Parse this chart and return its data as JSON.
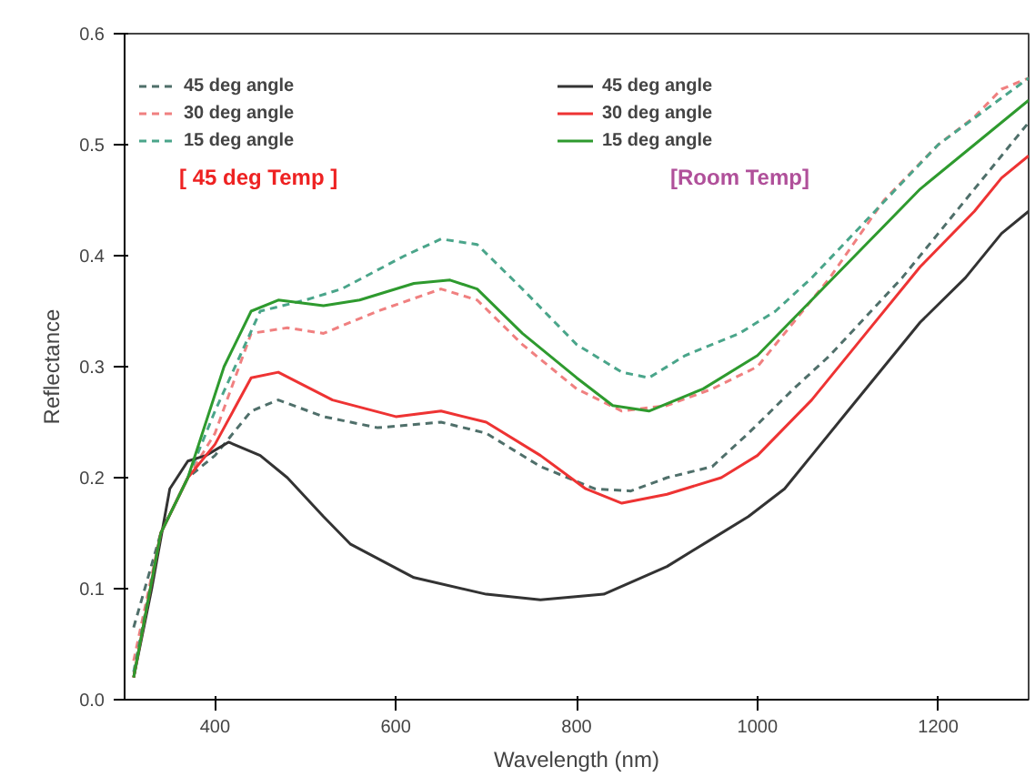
{
  "chart_data": {
    "type": "line",
    "xlabel": "Wavelength (nm)",
    "ylabel": "Reflectance",
    "xlim": [
      300,
      1300
    ],
    "ylim": [
      0,
      0.6
    ],
    "xticks": [
      400,
      600,
      800,
      1000,
      1200
    ],
    "yticks": [
      {
        "value": 0,
        "label": "0.0"
      },
      0.1,
      0.2,
      0.3,
      0.4,
      0.5,
      0.6
    ],
    "legend": "top left",
    "grid": false,
    "annotations": [
      "[ 45 deg Temp ]",
      "[Room Temp]"
    ],
    "series": [
      {
        "name": "45 deg angle",
        "color": "#4f6f6a",
        "line_style": "dashed",
        "x": [
          310,
          340,
          370,
          400,
          440,
          470,
          520,
          580,
          650,
          700,
          760,
          820,
          860,
          900,
          950,
          990,
          1040,
          1080,
          1120,
          1160,
          1200,
          1230,
          1270,
          1300
        ],
        "values": [
          0.065,
          0.15,
          0.2,
          0.22,
          0.26,
          0.27,
          0.255,
          0.245,
          0.25,
          0.24,
          0.21,
          0.19,
          0.188,
          0.2,
          0.21,
          0.24,
          0.28,
          0.31,
          0.345,
          0.38,
          0.42,
          0.45,
          0.49,
          0.52
        ]
      },
      {
        "name": "30 deg angle",
        "color": "#f08080",
        "line_style": "dashed",
        "x": [
          310,
          340,
          370,
          400,
          440,
          480,
          520,
          580,
          650,
          690,
          740,
          800,
          850,
          900,
          950,
          1000,
          1040,
          1080,
          1140,
          1200,
          1240,
          1270,
          1300
        ],
        "values": [
          0.035,
          0.15,
          0.2,
          0.24,
          0.33,
          0.335,
          0.33,
          0.35,
          0.37,
          0.36,
          0.32,
          0.28,
          0.26,
          0.265,
          0.28,
          0.3,
          0.34,
          0.38,
          0.45,
          0.5,
          0.525,
          0.55,
          0.56
        ]
      },
      {
        "name": "15 deg angle",
        "color": "#4aa58a",
        "line_style": "dashed",
        "x": [
          310,
          340,
          370,
          400,
          450,
          500,
          540,
          610,
          650,
          690,
          740,
          800,
          850,
          880,
          920,
          980,
          1020,
          1060,
          1130,
          1200,
          1250,
          1300
        ],
        "values": [
          0.025,
          0.15,
          0.2,
          0.26,
          0.35,
          0.36,
          0.37,
          0.4,
          0.415,
          0.41,
          0.37,
          0.32,
          0.295,
          0.29,
          0.31,
          0.33,
          0.35,
          0.38,
          0.44,
          0.5,
          0.53,
          0.56
        ]
      },
      {
        "name": "45 deg angle",
        "color": "#333333",
        "line_style": "solid",
        "x": [
          310,
          330,
          350,
          370,
          390,
          415,
          450,
          480,
          520,
          550,
          620,
          700,
          760,
          830,
          900,
          950,
          990,
          1030,
          1060,
          1100,
          1140,
          1180,
          1230,
          1270,
          1300
        ],
        "values": [
          0.02,
          0.1,
          0.19,
          0.215,
          0.22,
          0.232,
          0.22,
          0.2,
          0.165,
          0.14,
          0.11,
          0.095,
          0.09,
          0.095,
          0.12,
          0.145,
          0.165,
          0.19,
          0.22,
          0.26,
          0.3,
          0.34,
          0.38,
          0.42,
          0.44
        ]
      },
      {
        "name": "30 deg angle",
        "color": "#ee3333",
        "line_style": "solid",
        "x": [
          310,
          340,
          370,
          400,
          440,
          470,
          530,
          600,
          650,
          700,
          760,
          810,
          850,
          900,
          960,
          1000,
          1060,
          1120,
          1180,
          1240,
          1270,
          1300
        ],
        "values": [
          0.02,
          0.15,
          0.2,
          0.23,
          0.29,
          0.295,
          0.27,
          0.255,
          0.26,
          0.25,
          0.22,
          0.19,
          0.177,
          0.185,
          0.2,
          0.22,
          0.27,
          0.33,
          0.39,
          0.44,
          0.47,
          0.49
        ]
      },
      {
        "name": "15 deg angle",
        "color": "#2e9a2e",
        "line_style": "solid",
        "x": [
          310,
          340,
          370,
          410,
          440,
          470,
          520,
          560,
          620,
          660,
          690,
          740,
          800,
          840,
          880,
          940,
          1000,
          1060,
          1120,
          1180,
          1240,
          1300
        ],
        "values": [
          0.02,
          0.15,
          0.2,
          0.3,
          0.35,
          0.36,
          0.355,
          0.36,
          0.375,
          0.378,
          0.37,
          0.33,
          0.29,
          0.265,
          0.26,
          0.28,
          0.31,
          0.36,
          0.41,
          0.46,
          0.5,
          0.54
        ]
      }
    ]
  }
}
